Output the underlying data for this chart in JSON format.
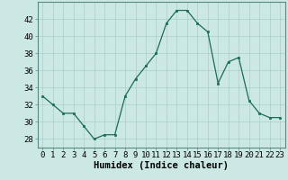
{
  "x": [
    0,
    1,
    2,
    3,
    4,
    5,
    6,
    7,
    8,
    9,
    10,
    11,
    12,
    13,
    14,
    15,
    16,
    17,
    18,
    19,
    20,
    21,
    22,
    23
  ],
  "y": [
    33,
    32,
    31,
    31,
    29.5,
    28,
    28.5,
    28.5,
    33,
    35,
    36.5,
    38,
    41.5,
    43,
    43,
    41.5,
    40.5,
    34.5,
    37,
    37.5,
    32.5,
    31,
    30.5,
    30.5
  ],
  "line_color": "#1a6b5a",
  "marker_color": "#1a6b5a",
  "bg_color": "#cce8e4",
  "grid_color": "#aacfcb",
  "xlabel": "Humidex (Indice chaleur)",
  "ylim": [
    27,
    44
  ],
  "yticks": [
    28,
    30,
    32,
    34,
    36,
    38,
    40,
    42
  ],
  "xticks": [
    0,
    1,
    2,
    3,
    4,
    5,
    6,
    7,
    8,
    9,
    10,
    11,
    12,
    13,
    14,
    15,
    16,
    17,
    18,
    19,
    20,
    21,
    22,
    23
  ],
  "tick_fontsize": 6.5,
  "xlabel_fontsize": 7.5
}
